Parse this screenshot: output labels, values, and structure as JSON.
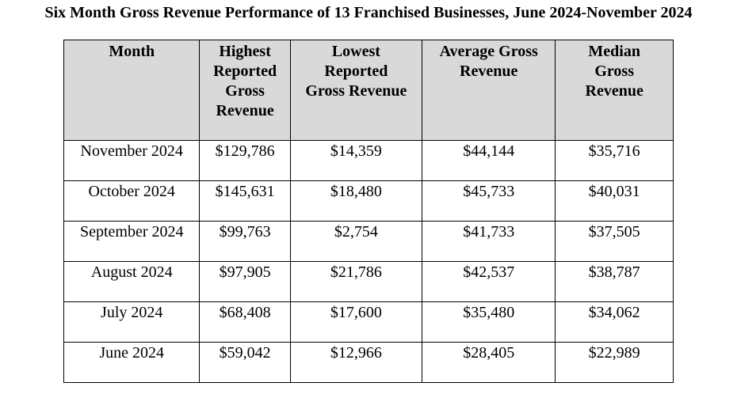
{
  "title": "Six Month Gross Revenue Performance of 13 Franchised Businesses, June 2024-November 2024",
  "table": {
    "headers": [
      [
        "Month"
      ],
      [
        "Highest",
        "Reported",
        "Gross",
        "Revenue"
      ],
      [
        "Lowest",
        "Reported",
        "Gross Revenue"
      ],
      [
        "Average Gross",
        "Revenue"
      ],
      [
        "Median",
        "Gross",
        "Revenue"
      ]
    ],
    "rows": [
      [
        "November 2024",
        "$129,786",
        "$14,359",
        "$44,144",
        "$35,716"
      ],
      [
        "October 2024",
        "$145,631",
        "$18,480",
        "$45,733",
        "$40,031"
      ],
      [
        "September 2024",
        "$99,763",
        "$2,754",
        "$41,733",
        "$37,505"
      ],
      [
        "August 2024",
        "$97,905",
        "$21,786",
        "$42,537",
        "$38,787"
      ],
      [
        "July 2024",
        "$68,408",
        "$17,600",
        "$35,480",
        "$34,062"
      ],
      [
        "June 2024",
        "$59,042",
        "$12,966",
        "$28,405",
        "$22,989"
      ]
    ]
  }
}
